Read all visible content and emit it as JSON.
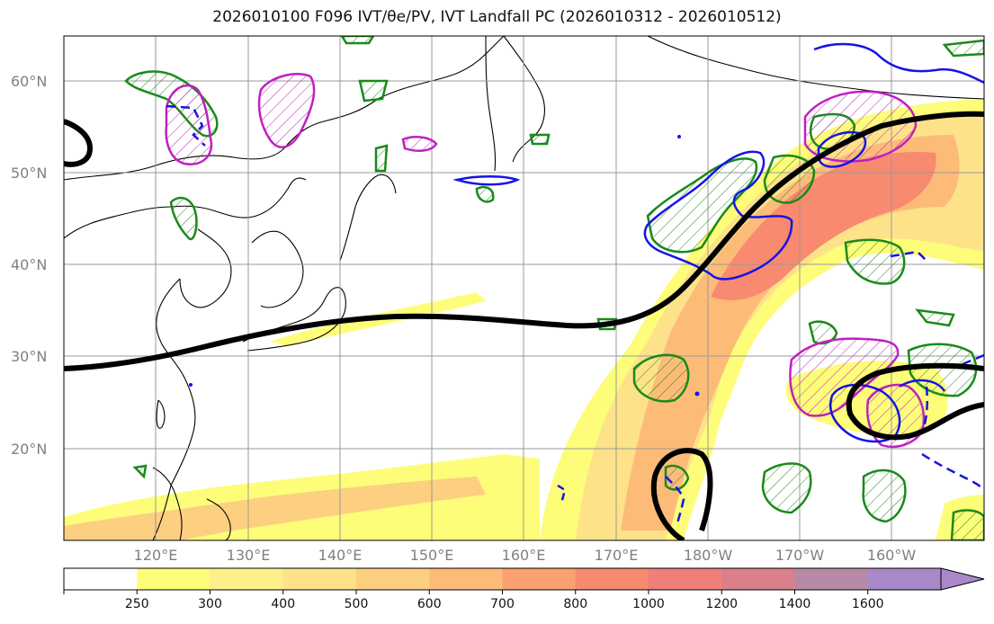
{
  "title": "2026010100 F096 IVT/θe/PV, IVT Landfall PC (2026010312 - 2026010512)",
  "map": {
    "lon_labels": [
      "120°E",
      "130°E",
      "140°E",
      "150°E",
      "160°E",
      "170°E",
      "180°W",
      "170°W",
      "160°W"
    ],
    "lat_labels": [
      "60°N",
      "50°N",
      "40°N",
      "30°N",
      "20°N"
    ]
  },
  "colorbar": {
    "levels": [
      "250",
      "300",
      "400",
      "500",
      "600",
      "700",
      "800",
      "1000",
      "1200",
      "1400",
      "1600"
    ],
    "colors": [
      "#ffffff",
      "#fdfd7a",
      "#fdf08a",
      "#fde28a",
      "#fdcf80",
      "#fdbb78",
      "#fba070",
      "#f88a70",
      "#ef7f78",
      "#d9808a",
      "#b68aa6",
      "#a888c8"
    ]
  }
}
